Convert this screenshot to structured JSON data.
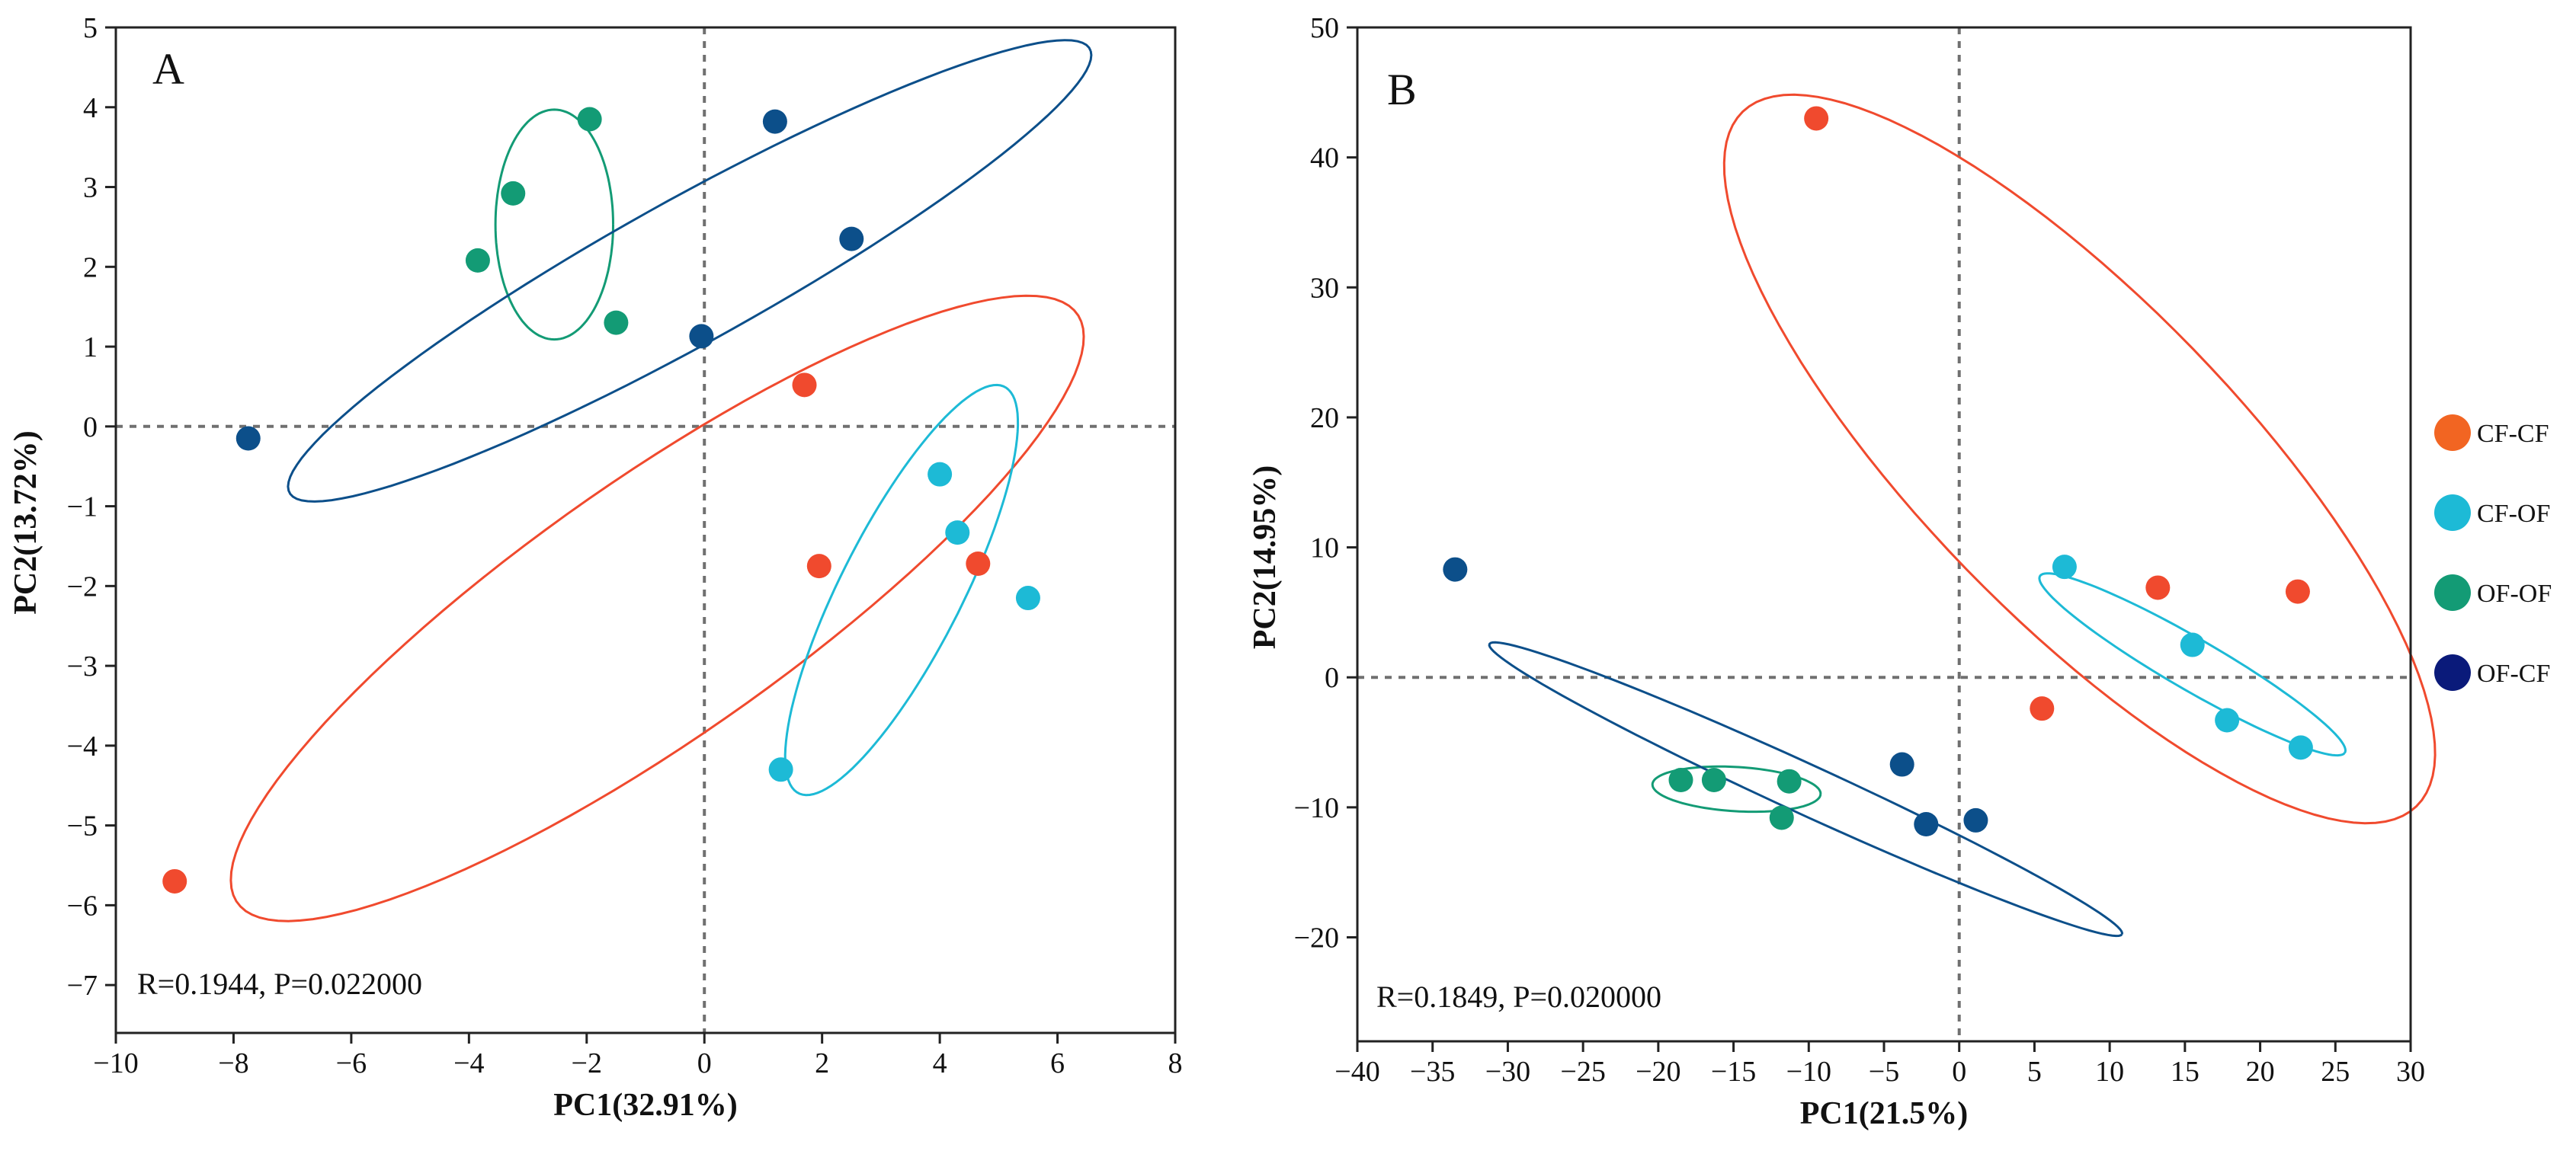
{
  "colors": {
    "CF-CF": "#f04a2e",
    "CF-OF": "#1dbad6",
    "OF-OF": "#139b75",
    "OF-CF": "#0c4f8a",
    "legend_OF-CF": "#0a1a7a",
    "legend_CF-CF": "#f26522",
    "refline": "#707070"
  },
  "legend": {
    "items": [
      {
        "key": "CF-CF",
        "label": "CF-CF"
      },
      {
        "key": "CF-OF",
        "label": "CF-OF"
      },
      {
        "key": "OF-OF",
        "label": "OF-OF"
      },
      {
        "key": "OF-CF",
        "label": "OF-CF"
      }
    ]
  },
  "chart_data": [
    {
      "type": "scatter",
      "panel_label": "A",
      "xlabel": "PC1(32.91%)",
      "ylabel": "PC2(13.72%)",
      "annotation": "R=0.1944, P=0.022000",
      "xlim": [
        -10,
        8
      ],
      "ylim": [
        -7.6,
        5
      ],
      "xticks": [
        -10,
        -8,
        -6,
        -4,
        -2,
        0,
        2,
        4,
        6,
        8
      ],
      "yticks": [
        -7,
        -6,
        -5,
        -4,
        -3,
        -2,
        -1,
        0,
        1,
        2,
        3,
        4,
        5
      ],
      "reference_lines": {
        "x": 0,
        "y": 0
      },
      "series": [
        {
          "name": "CF-CF",
          "points": [
            [
              -9.0,
              -5.7
            ],
            [
              1.7,
              0.52
            ],
            [
              1.95,
              -1.75
            ],
            [
              4.65,
              -1.72
            ]
          ],
          "ellipse": {
            "cx": -0.8,
            "cy": -2.28,
            "rx": 8.05,
            "ry": 1.75,
            "angle_deg": 26.5
          }
        },
        {
          "name": "CF-OF",
          "points": [
            [
              4.0,
              -0.6
            ],
            [
              4.3,
              -1.33
            ],
            [
              5.5,
              -2.15
            ],
            [
              1.3,
              -4.3
            ]
          ],
          "ellipse": {
            "cx": 3.35,
            "cy": -2.05,
            "rx": 3.1,
            "ry": 0.95,
            "angle_deg": 54
          }
        },
        {
          "name": "OF-OF",
          "points": [
            [
              -1.95,
              3.85
            ],
            [
              -3.25,
              2.92
            ],
            [
              -3.85,
              2.08
            ],
            [
              -1.5,
              1.3
            ]
          ],
          "ellipse": {
            "cx": -2.55,
            "cy": 2.53,
            "rx": 1.0,
            "ry": 1.44,
            "angle_deg": 0
          }
        },
        {
          "name": "OF-CF",
          "points": [
            [
              1.2,
              3.82
            ],
            [
              2.5,
              2.35
            ],
            [
              -0.05,
              1.13
            ],
            [
              -7.75,
              -0.15
            ]
          ],
          "ellipse": {
            "cx": -0.25,
            "cy": 1.95,
            "rx": 7.35,
            "ry": 0.95,
            "angle_deg": 22
          }
        }
      ]
    },
    {
      "type": "scatter",
      "panel_label": "B",
      "xlabel": "PC1(21.5%)",
      "ylabel": "PC2(14.95%)",
      "annotation": "R=0.1849, P=0.020000",
      "xlim": [
        -40,
        30
      ],
      "ylim": [
        -28,
        50
      ],
      "xticks": [
        -40,
        -35,
        -30,
        -25,
        -20,
        -15,
        -10,
        -5,
        0,
        5,
        10,
        15,
        20,
        25,
        30
      ],
      "yticks": [
        -20,
        -10,
        0,
        10,
        20,
        30,
        40,
        50
      ],
      "reference_lines": {
        "x": 0,
        "y": 0
      },
      "series": [
        {
          "name": "CF-CF",
          "points": [
            [
              -9.5,
              43.0
            ],
            [
              13.2,
              6.9
            ],
            [
              22.5,
              6.6
            ],
            [
              5.5,
              -2.4
            ]
          ],
          "ellipse": {
            "cx": 8.0,
            "cy": 16.8,
            "rx": 34.9,
            "ry": 11.2,
            "angle_deg": -51
          }
        },
        {
          "name": "CF-OF",
          "points": [
            [
              7.0,
              8.5
            ],
            [
              15.5,
              2.5
            ],
            [
              17.8,
              -3.3
            ],
            [
              22.7,
              -5.4
            ]
          ],
          "ellipse": {
            "cx": 15.5,
            "cy": 1.0,
            "rx": 12.2,
            "ry": 1.9,
            "angle_deg": -34
          }
        },
        {
          "name": "OF-OF",
          "points": [
            [
              -18.5,
              -7.9
            ],
            [
              -16.3,
              -7.9
            ],
            [
              -11.3,
              -8.0
            ],
            [
              -11.8,
              -10.8
            ]
          ],
          "ellipse": {
            "cx": -14.8,
            "cy": -8.6,
            "rx": 5.6,
            "ry": 1.7,
            "angle_deg": -4
          }
        },
        {
          "name": "OF-CF",
          "points": [
            [
              -33.5,
              8.3
            ],
            [
              -3.8,
              -6.7
            ],
            [
              -2.2,
              -11.3
            ],
            [
              1.1,
              -11.0
            ]
          ],
          "ellipse": {
            "cx": -10.2,
            "cy": -8.6,
            "rx": 23.8,
            "ry": 1.85,
            "angle_deg": -28
          }
        }
      ]
    }
  ]
}
